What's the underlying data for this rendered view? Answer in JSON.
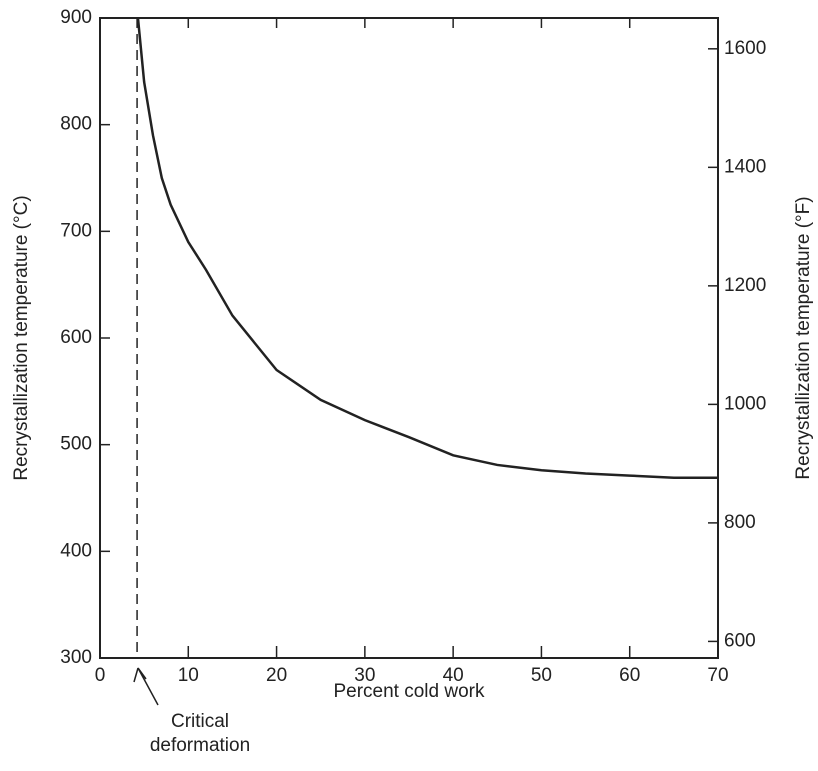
{
  "chart_data": {
    "type": "line",
    "xlabel": "Percent cold work",
    "ylabel": "Recrystallization temperature (°C)",
    "y2label": "Recrystallization temperature (°F)",
    "x": [
      4.3,
      5,
      6,
      7,
      8,
      10,
      12,
      15,
      20,
      25,
      30,
      35,
      40,
      45,
      50,
      55,
      60,
      65,
      70
    ],
    "values": [
      900,
      840,
      790,
      750,
      725,
      690,
      664,
      621,
      570,
      542,
      523,
      507,
      490,
      481,
      476,
      473,
      471,
      469,
      469
    ],
    "color": "#222222",
    "xlim": [
      0,
      70
    ],
    "xticks": [
      0,
      10,
      20,
      30,
      40,
      50,
      60,
      70
    ],
    "ylim": [
      300,
      900
    ],
    "yticks": [
      300,
      400,
      500,
      600,
      700,
      800,
      900
    ],
    "y2lim": [
      572,
      1652
    ],
    "y2ticks": [
      600,
      800,
      1000,
      1200,
      1400,
      1600
    ],
    "critical_x": 4.2,
    "annotation": [
      "Critical",
      "deformation"
    ]
  }
}
